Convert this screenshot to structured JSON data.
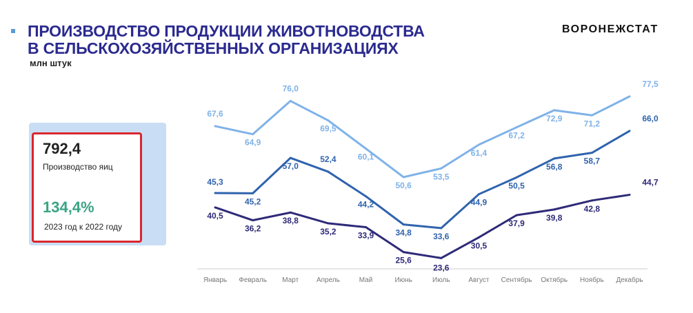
{
  "header": {
    "title_line1": "ПРОИЗВОДСТВО ПРОДУКЦИИ ЖИВОТНОВОДСТВА",
    "title_line2": "В СЕЛЬСКОХОЗЯЙСТВЕННЫХ ОРГАНИЗАЦИЯХ",
    "unit": "млн штук",
    "logo": "ВОРОНЕЖСТАТ"
  },
  "summary": {
    "value": "792,4",
    "value_label": "Производство яиц",
    "percent": "134,4%",
    "percent_label": "2023 год к 2022 году"
  },
  "chart_data": {
    "type": "line",
    "title": "ПРОИЗВОДСТВО ПРОДУКЦИИ ЖИВОТНОВОДСТВА В СЕЛЬСКОХОЗЯЙСТВЕННЫХ ОРГАНИЗАЦИЯХ",
    "ylabel": "млн штук",
    "xlabel": "",
    "categories": [
      "Январь",
      "Февраль",
      "Март",
      "Апрель",
      "Май",
      "Июнь",
      "Июль",
      "Август",
      "Сентябрь",
      "Октябрь",
      "Ноябрь",
      "Декабрь"
    ],
    "ylim": [
      20,
      80
    ],
    "grid": false,
    "legend": "none",
    "series": [
      {
        "name": "series-1",
        "color": "#7fb2e8",
        "values": [
          67.6,
          64.9,
          76.0,
          69.5,
          60.1,
          50.6,
          53.5,
          61.4,
          67.2,
          72.9,
          71.2,
          77.5
        ],
        "labels": [
          "67,6",
          "64,9",
          "76,0",
          "69,5",
          "60,1",
          "50,6",
          "53,5",
          "61,4",
          "67,2",
          "72,9",
          "71,2",
          "77,5"
        ]
      },
      {
        "name": "series-2",
        "color": "#2f63ad",
        "values": [
          45.3,
          45.2,
          57.0,
          52.4,
          44.2,
          34.8,
          33.6,
          44.9,
          50.5,
          56.8,
          58.7,
          66.0
        ],
        "labels": [
          "45,3",
          "45,2",
          "57,0",
          "52,4",
          "44,2",
          "34,8",
          "33,6",
          "44,9",
          "50,5",
          "56,8",
          "58,7",
          "66,0"
        ]
      },
      {
        "name": "series-3",
        "color": "#2e2a78",
        "values": [
          40.5,
          36.2,
          38.8,
          35.2,
          33.9,
          25.6,
          23.6,
          30.5,
          37.9,
          39.8,
          42.8,
          44.7
        ],
        "labels": [
          "40,5",
          "36,2",
          "38,8",
          "35,2",
          "33,9",
          "25,6",
          "23,6",
          "30,5",
          "37,9",
          "39,8",
          "42,8",
          "44,7"
        ]
      }
    ]
  }
}
